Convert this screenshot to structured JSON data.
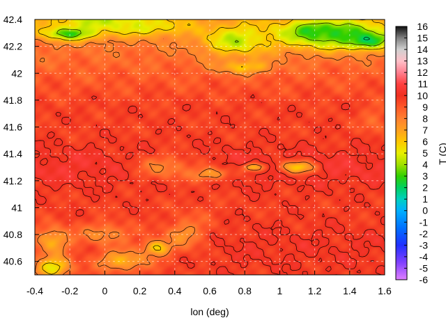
{
  "chart_data": {
    "type": "heatmap",
    "title": "",
    "xlabel": "lon (deg)",
    "ylabel": "",
    "xlim": [
      -0.4,
      1.6
    ],
    "ylim": [
      40.5,
      42.4
    ],
    "x_ticks": [
      "-0.4",
      "-0.2",
      "0",
      "0.2",
      "0.4",
      "0.6",
      "0.8",
      "1",
      "1.2",
      "1.4",
      "1.6"
    ],
    "y_ticks": [
      "40.6",
      "40.8",
      "41",
      "41.2",
      "41.4",
      "41.6",
      "41.8",
      "42",
      "42.2",
      "42.4"
    ],
    "grid": true,
    "contours": true,
    "colorbar": {
      "label": "T (C)",
      "min": -6,
      "max": 16,
      "ticks": [
        "16",
        "15",
        "14",
        "13",
        "12",
        "11",
        "10",
        "9",
        "8",
        "7",
        "6",
        "5",
        "4",
        "3",
        "2",
        "1",
        "0",
        "-1",
        "-2",
        "-3",
        "-4",
        "-5",
        "-6"
      ],
      "stops": [
        {
          "value": -6,
          "color": "#e080ff"
        },
        {
          "value": -4.5,
          "color": "#8040ff"
        },
        {
          "value": -3,
          "color": "#2030ff"
        },
        {
          "value": -1.5,
          "color": "#0070ff"
        },
        {
          "value": 0,
          "color": "#00b0ff"
        },
        {
          "value": 1,
          "color": "#00d0c0"
        },
        {
          "value": 2,
          "color": "#00d060"
        },
        {
          "value": 3,
          "color": "#30d000"
        },
        {
          "value": 4,
          "color": "#a0e000"
        },
        {
          "value": 5,
          "color": "#e8f000"
        },
        {
          "value": 6,
          "color": "#ffc800"
        },
        {
          "value": 7,
          "color": "#ffa020"
        },
        {
          "value": 8,
          "color": "#ff8030"
        },
        {
          "value": 9,
          "color": "#ff5828"
        },
        {
          "value": 10,
          "color": "#f03020"
        },
        {
          "value": 11,
          "color": "#ff4040"
        },
        {
          "value": 12,
          "color": "#ff8090"
        },
        {
          "value": 13,
          "color": "#ffc0c8"
        },
        {
          "value": 14,
          "color": "#d0d0d0"
        },
        {
          "value": 15,
          "color": "#808080"
        },
        {
          "value": 16,
          "color": "#101010"
        }
      ]
    },
    "features": [
      {
        "lon": 0.0,
        "lat": 42.4,
        "t": 4.5,
        "sx": 0.35,
        "sy": 0.1
      },
      {
        "lon": -0.2,
        "lat": 42.3,
        "t": 3.0,
        "sx": 0.15,
        "sy": 0.05
      },
      {
        "lon": 0.25,
        "lat": 42.35,
        "t": 5.0,
        "sx": 0.2,
        "sy": 0.06
      },
      {
        "lon": 1.3,
        "lat": 42.3,
        "t": 3.0,
        "sx": 0.35,
        "sy": 0.12
      },
      {
        "lon": 1.5,
        "lat": 42.25,
        "t": 2.0,
        "sx": 0.12,
        "sy": 0.06
      },
      {
        "lon": 1.2,
        "lat": 42.32,
        "t": 2.5,
        "sx": 0.1,
        "sy": 0.05
      },
      {
        "lon": 0.75,
        "lat": 42.25,
        "t": 4.5,
        "sx": 0.2,
        "sy": 0.12
      },
      {
        "lon": 0.8,
        "lat": 42.05,
        "t": 6.0,
        "sx": 0.15,
        "sy": 0.05
      },
      {
        "lon": 0.85,
        "lat": 41.3,
        "t": 6.5,
        "sx": 0.06,
        "sy": 0.03
      },
      {
        "lon": 1.1,
        "lat": 41.3,
        "t": 6.0,
        "sx": 0.1,
        "sy": 0.05
      },
      {
        "lon": 0.6,
        "lat": 41.25,
        "t": 7.0,
        "sx": 0.12,
        "sy": 0.05
      },
      {
        "lon": -0.3,
        "lat": 40.75,
        "t": 6.5,
        "sx": 0.1,
        "sy": 0.1
      },
      {
        "lon": -0.3,
        "lat": 40.55,
        "t": 5.0,
        "sx": 0.1,
        "sy": 0.08
      },
      {
        "lon": 0.1,
        "lat": 40.6,
        "t": 6.5,
        "sx": 0.15,
        "sy": 0.08
      },
      {
        "lon": 0.3,
        "lat": 40.7,
        "t": 5.5,
        "sx": 0.08,
        "sy": 0.06
      },
      {
        "lon": 0.45,
        "lat": 40.8,
        "t": 7.5,
        "sx": 0.1,
        "sy": 0.1
      },
      {
        "lon": 0.0,
        "lat": 40.8,
        "t": 7.5,
        "sx": 0.15,
        "sy": 0.08
      },
      {
        "lon": 0.35,
        "lat": 41.3,
        "t": 8.0,
        "sx": 0.2,
        "sy": 0.1
      },
      {
        "lon": 1.55,
        "lat": 41.65,
        "t": 8.5,
        "sx": 0.08,
        "sy": 0.1
      }
    ]
  }
}
